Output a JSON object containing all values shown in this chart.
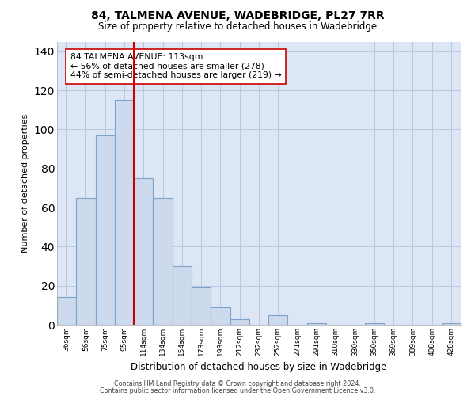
{
  "title": "84, TALMENA AVENUE, WADEBRIDGE, PL27 7RR",
  "subtitle": "Size of property relative to detached houses in Wadebridge",
  "xlabel": "Distribution of detached houses by size in Wadebridge",
  "ylabel": "Number of detached properties",
  "bar_labels": [
    "36sqm",
    "56sqm",
    "75sqm",
    "95sqm",
    "114sqm",
    "134sqm",
    "154sqm",
    "173sqm",
    "193sqm",
    "212sqm",
    "232sqm",
    "252sqm",
    "271sqm",
    "291sqm",
    "310sqm",
    "330sqm",
    "350sqm",
    "369sqm",
    "389sqm",
    "408sqm",
    "428sqm"
  ],
  "bar_heights": [
    14,
    65,
    97,
    115,
    75,
    65,
    30,
    19,
    9,
    3,
    0,
    5,
    0,
    1,
    0,
    0,
    1,
    0,
    0,
    0,
    1
  ],
  "bar_color": "#cdd9ec",
  "bar_edge_color": "#7ba3cc",
  "vline_color": "#cc0000",
  "annotation_text": "84 TALMENA AVENUE: 113sqm\n← 56% of detached houses are smaller (278)\n44% of semi-detached houses are larger (219) →",
  "ylim": [
    0,
    145
  ],
  "yticks": [
    0,
    20,
    40,
    60,
    80,
    100,
    120,
    140
  ],
  "bg_color": "#ffffff",
  "plot_bg_color": "#dce6f5",
  "grid_color": "#b8c8e0",
  "footer_line1": "Contains HM Land Registry data © Crown copyright and database right 2024.",
  "footer_line2": "Contains public sector information licensed under the Open Government Licence v3.0."
}
